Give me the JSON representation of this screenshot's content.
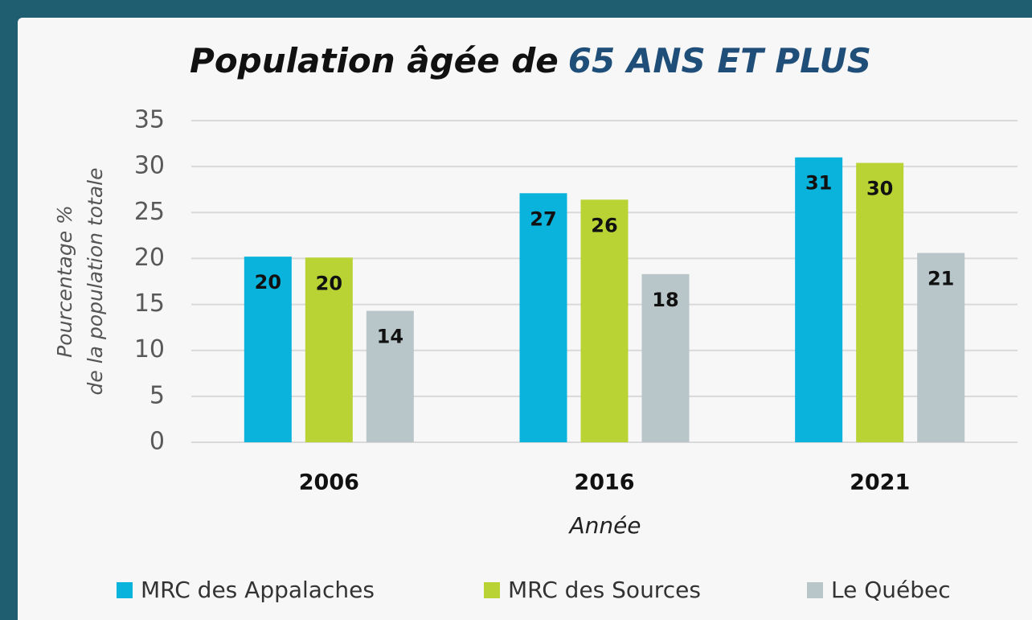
{
  "chart_data": {
    "type": "bar",
    "title": "Population âgée de",
    "title_emphasis": "65 ANS ET PLUS",
    "y_label": [
      "Pourcentage %",
      "de la population totale"
    ],
    "x_label": "Année",
    "categories": [
      "2006",
      "2016",
      "2021"
    ],
    "series": [
      {
        "name": "MRC des Appalaches",
        "color": "#0ab3dc",
        "values": [
          20.2,
          27.1,
          31.0
        ],
        "value_labels": [
          "20",
          "27",
          "31"
        ]
      },
      {
        "name": "MRC des Sources",
        "color": "#b9d234",
        "values": [
          20.1,
          26.4,
          30.4
        ],
        "value_labels": [
          "20",
          "26",
          "30"
        ]
      },
      {
        "name": "Le Québec",
        "color": "#b8c6c9",
        "values": [
          14.3,
          18.3,
          20.6
        ],
        "value_labels": [
          "14",
          "18",
          "21"
        ]
      }
    ],
    "ylim": [
      0,
      35
    ],
    "yticks": [
      0,
      5,
      10,
      15,
      20,
      25,
      30,
      35
    ],
    "grid": true,
    "legend": "bottom"
  }
}
